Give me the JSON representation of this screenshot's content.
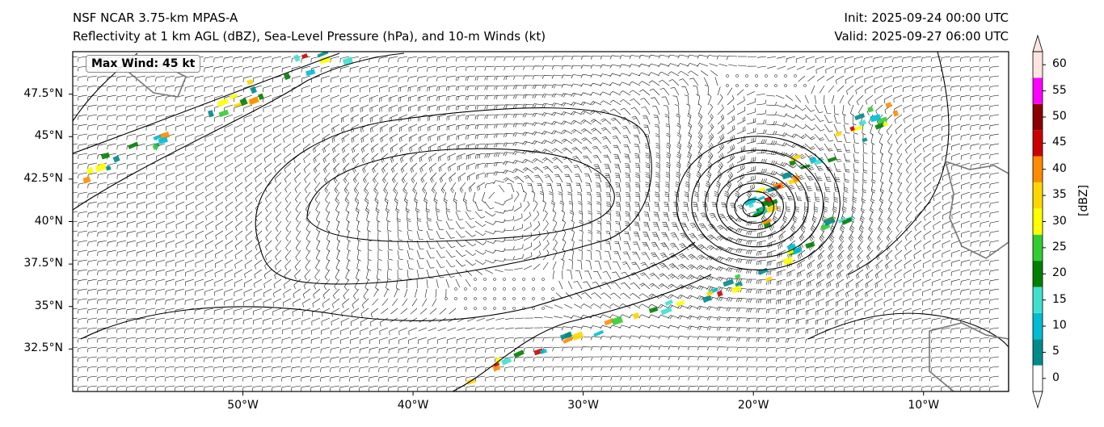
{
  "header": {
    "model": "NSF NCAR 3.75-km MPAS-A",
    "fields": "Reflectivity at 1 km AGL (dBZ), Sea-Level Pressure (hPa), and 10-m Winds (kt)",
    "init": "Init: 2025-09-24 00:00 UTC",
    "valid": "Valid: 2025-09-27 06:00 UTC"
  },
  "annotation": {
    "max_wind": "Max Wind: 45 kt"
  },
  "map": {
    "extent_lon": [
      -60,
      -5
    ],
    "extent_lat": [
      30,
      50
    ],
    "lat_ticks": [
      {
        "value": 47.5,
        "label": "47.5°N"
      },
      {
        "value": 45,
        "label": "45°N"
      },
      {
        "value": 42.5,
        "label": "42.5°N"
      },
      {
        "value": 40,
        "label": "40°N"
      },
      {
        "value": 37.5,
        "label": "37.5°N"
      },
      {
        "value": 35,
        "label": "35°N"
      },
      {
        "value": 32.5,
        "label": "32.5°N"
      }
    ],
    "lon_ticks": [
      {
        "value": -50,
        "label": "50°W"
      },
      {
        "value": -40,
        "label": "40°W"
      },
      {
        "value": -30,
        "label": "30°W"
      },
      {
        "value": -20,
        "label": "20°W"
      },
      {
        "value": -10,
        "label": "10°W"
      }
    ],
    "cyclone_center": {
      "lon": -20,
      "lat": 40.8
    },
    "anticyclone_center": {
      "lon": -35,
      "lat": 42
    }
  },
  "colorbar": {
    "label": "[dBZ]",
    "ticks": [
      "0",
      "5",
      "10",
      "15",
      "20",
      "25",
      "30",
      "35",
      "40",
      "45",
      "50",
      "55",
      "60"
    ],
    "colors": [
      "#ffffff",
      "#008b8b",
      "#00bcd4",
      "#40e0d0",
      "#008000",
      "#32cd32",
      "#ffff00",
      "#ffd700",
      "#ff8c00",
      "#cc0000",
      "#8b0000",
      "#ff00ff",
      "#ffe4e1"
    ]
  }
}
